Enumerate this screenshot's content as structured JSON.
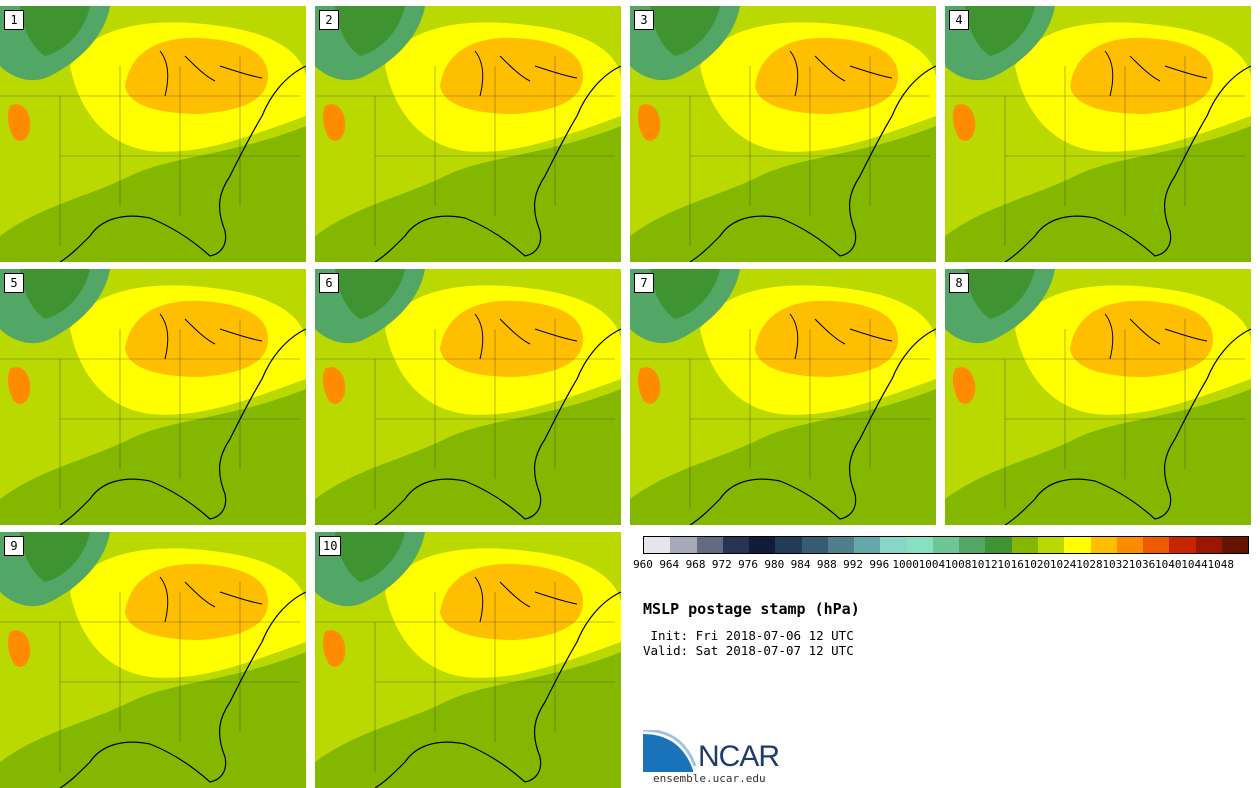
{
  "panels": [
    "1",
    "2",
    "3",
    "4",
    "5",
    "6",
    "7",
    "8",
    "9",
    "10"
  ],
  "colorbar": {
    "levels": [
      "960",
      "964",
      "968",
      "972",
      "976",
      "980",
      "984",
      "988",
      "992",
      "996",
      "1000",
      "1004",
      "1008",
      "1012",
      "1016",
      "1020",
      "1024",
      "1028",
      "1032",
      "1036",
      "1040",
      "1044",
      "1048"
    ],
    "colors": [
      "#e4e6eb",
      "#a7a9b8",
      "#636b83",
      "#283456",
      "#0f1c3a",
      "#223b57",
      "#365b73",
      "#4f7f8c",
      "#66a7a7",
      "#88d6c8",
      "#87e0c0",
      "#6cc794",
      "#53a766",
      "#3f9431",
      "#84b800",
      "#b9d900",
      "#ffff00",
      "#ffbf00",
      "#ff8c00",
      "#ee5a00",
      "#c72400",
      "#9b1600",
      "#6a1200"
    ]
  },
  "title": "MSLP postage stamp (hPa)",
  "init": " Init: Fri 2018-07-06 12 UTC",
  "valid": "Valid: Sat 2018-07-07 12 UTC",
  "logo": {
    "text": "NCAR",
    "icon": "ncar-logo-icon"
  },
  "site": "ensemble.ucar.edu"
}
